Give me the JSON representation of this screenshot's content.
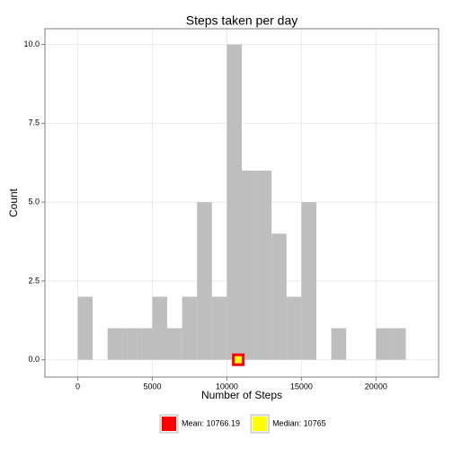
{
  "chart_data": {
    "type": "histogram",
    "title": "Steps taken per day",
    "x_label": "Number of Steps",
    "y_label": "Count",
    "bins": [
      0,
      1000,
      2000,
      3000,
      4000,
      5000,
      6000,
      7000,
      8000,
      9000,
      10000,
      11000,
      12000,
      13000,
      14000,
      15000,
      16000,
      17000,
      18000,
      19000,
      20000,
      21000,
      22000
    ],
    "values": [
      2,
      0,
      1,
      1,
      1,
      2,
      1,
      2,
      5,
      2,
      10,
      6,
      6,
      4,
      2,
      5,
      0,
      1,
      0,
      0,
      1,
      1
    ],
    "color": "#bebebe",
    "series": [
      {
        "name": "Mean: 10766.19",
        "color": "#ff0000",
        "x": [
          10766.19
        ],
        "values": [
          0
        ]
      },
      {
        "name": "Median: 10765",
        "color": "#ffff00",
        "x": [
          10765
        ],
        "values": [
          0
        ]
      }
    ],
    "xlim": [
      -2200,
      24200
    ],
    "ylim": [
      -0.55,
      10.5
    ],
    "xticks": [
      0,
      5000,
      10000,
      15000,
      20000
    ],
    "yticks": [
      {
        "value": 0,
        "label": "0.0"
      },
      {
        "value": 2.5,
        "label": "2.5"
      },
      {
        "value": 5,
        "label": "5.0"
      },
      {
        "value": 7.5,
        "label": "7.5"
      },
      {
        "value": 10,
        "label": "10.0"
      }
    ],
    "grid": true,
    "legend": "bottom"
  }
}
